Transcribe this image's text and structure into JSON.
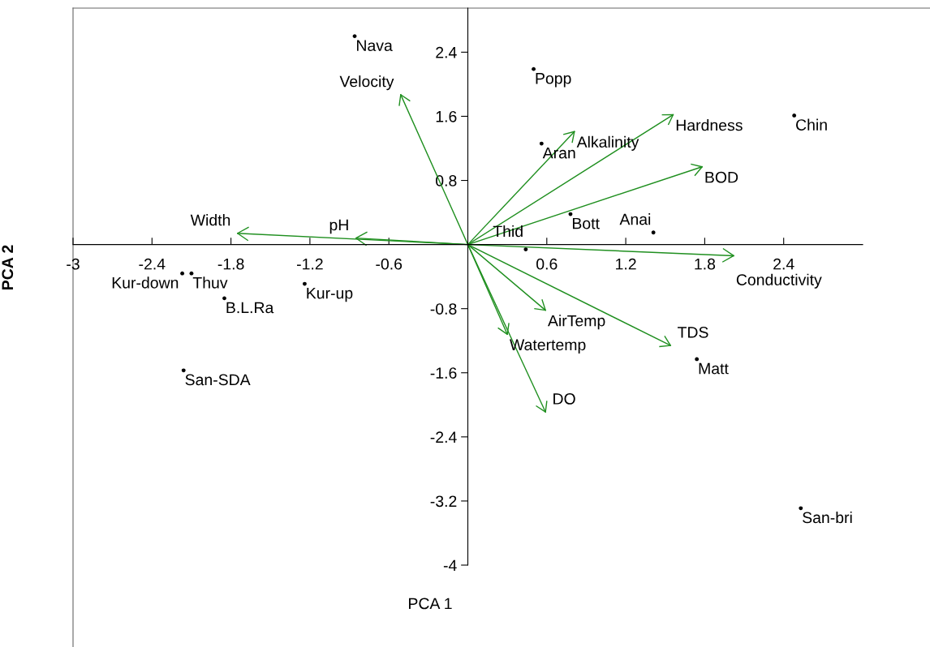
{
  "chart_data": {
    "type": "scatter",
    "xlabel": "PCA 1",
    "ylabel": "PCA 2",
    "xlim": [
      -3,
      3
    ],
    "ylim": [
      -4,
      2.95
    ],
    "xticks": [
      -3,
      -2.4,
      -1.8,
      -1.2,
      -0.6,
      0.6,
      1.2,
      1.8,
      2.4
    ],
    "yticks": [
      2.4,
      1.6,
      0.8,
      -0.8,
      -1.6,
      -2.4,
      -3.2,
      -4
    ],
    "series": [
      {
        "marker": "circle",
        "color": "#000000",
        "x": [
          -0.86,
          0.5,
          0.56,
          2.48,
          0.78,
          1.41,
          0.44,
          1.74,
          2.53,
          -2.17,
          -2.1,
          -1.85,
          -1.24,
          -2.16
        ],
        "values": [
          2.6,
          2.19,
          1.26,
          1.61,
          0.38,
          0.15,
          -0.06,
          -1.43,
          -3.29,
          -0.36,
          -0.36,
          -0.67,
          -0.49,
          -1.57
        ]
      },
      {
        "type": "line",
        "color": "#1f8f1f",
        "x": [
          0,
          -0.51
        ],
        "values": [
          0,
          1.87
        ]
      },
      {
        "type": "line",
        "color": "#1f8f1f",
        "x": [
          0,
          -1.75
        ],
        "values": [
          0,
          0.14
        ]
      },
      {
        "type": "line",
        "color": "#1f8f1f",
        "x": [
          0,
          -0.85
        ],
        "values": [
          0,
          0.08
        ]
      },
      {
        "type": "line",
        "color": "#1f8f1f",
        "x": [
          0,
          0.81
        ],
        "values": [
          0,
          1.41
        ]
      },
      {
        "type": "line",
        "color": "#1f8f1f",
        "x": [
          0,
          1.56
        ],
        "values": [
          0,
          1.62
        ]
      },
      {
        "type": "line",
        "color": "#1f8f1f",
        "x": [
          0,
          1.78
        ],
        "values": [
          0,
          0.97
        ]
      },
      {
        "type": "line",
        "color": "#1f8f1f",
        "x": [
          0,
          2.02
        ],
        "values": [
          0,
          -0.14
        ]
      },
      {
        "type": "line",
        "color": "#1f8f1f",
        "x": [
          0,
          1.54
        ],
        "values": [
          0,
          -1.26
        ]
      },
      {
        "type": "line",
        "color": "#1f8f1f",
        "x": [
          0,
          0.59
        ],
        "values": [
          0,
          -0.82
        ]
      },
      {
        "type": "line",
        "color": "#1f8f1f",
        "x": [
          0,
          0.3
        ],
        "values": [
          0,
          -1.12
        ]
      },
      {
        "type": "line",
        "color": "#1f8f1f",
        "x": [
          0,
          0.59
        ],
        "values": [
          0,
          -2.09
        ]
      }
    ],
    "annotations": [
      {
        "text": "Nava",
        "x": -0.86,
        "y": 2.6
      },
      {
        "text": "Popp",
        "x": 0.5,
        "y": 2.19
      },
      {
        "text": "Aran",
        "x": 0.56,
        "y": 1.26
      },
      {
        "text": "Chin",
        "x": 2.48,
        "y": 1.61
      },
      {
        "text": "Bott",
        "x": 0.78,
        "y": 0.38
      },
      {
        "text": "Anai",
        "x": 1.41,
        "y": 0.15
      },
      {
        "text": "Thid",
        "x": 0.44,
        "y": -0.06
      },
      {
        "text": "Matt",
        "x": 1.74,
        "y": -1.43
      },
      {
        "text": "San-bri",
        "x": 2.53,
        "y": -3.29
      },
      {
        "text": "Kur-down",
        "x": -2.17,
        "y": -0.36
      },
      {
        "text": "Thuv",
        "x": -2.1,
        "y": -0.36
      },
      {
        "text": "B.L.Ra",
        "x": -1.85,
        "y": -0.67
      },
      {
        "text": "Kur-up",
        "x": -1.24,
        "y": -0.49
      },
      {
        "text": "San-SDA",
        "x": -2.16,
        "y": -1.57
      },
      {
        "text": "Velocity",
        "x": -0.51,
        "y": 1.87
      },
      {
        "text": "Width",
        "x": -1.75,
        "y": 0.14
      },
      {
        "text": "pH",
        "x": -0.85,
        "y": 0.08
      },
      {
        "text": "Alkalinity",
        "x": 0.81,
        "y": 1.41
      },
      {
        "text": "Hardness",
        "x": 1.56,
        "y": 1.62
      },
      {
        "text": "BOD",
        "x": 1.78,
        "y": 0.97
      },
      {
        "text": "Conductivity",
        "x": 2.02,
        "y": -0.14
      },
      {
        "text": "TDS",
        "x": 1.54,
        "y": -1.26
      },
      {
        "text": "AirTemp",
        "x": 0.59,
        "y": -0.82
      },
      {
        "text": "Watertemp",
        "x": 0.3,
        "y": -1.12
      },
      {
        "text": "DO",
        "x": 0.59,
        "y": -2.09
      }
    ]
  }
}
